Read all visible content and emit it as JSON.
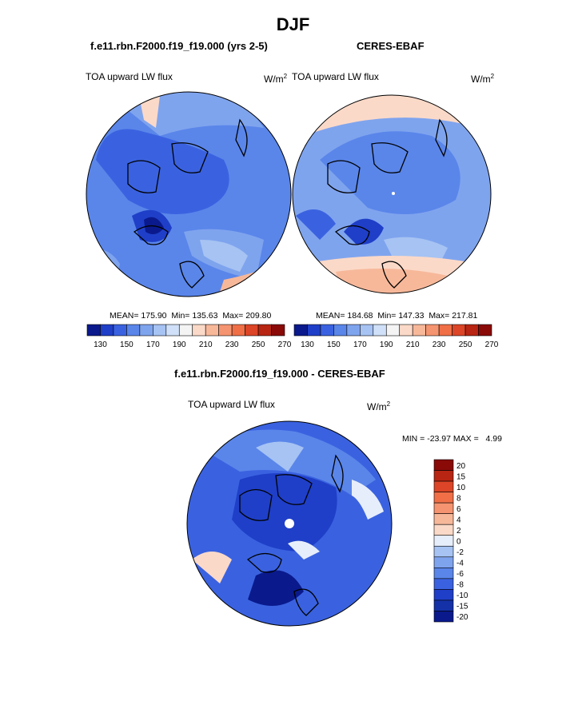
{
  "title": "DJF",
  "panels": [
    {
      "name": "model",
      "header": "f.e11.rbn.F2000.f19_f19.000 (yrs 2-5)",
      "variable": "TOA upward LW flux",
      "units": "W/m",
      "units_sup": "2",
      "mean": "175.90",
      "min": "135.63",
      "max": "209.80"
    },
    {
      "name": "obs",
      "header": "CERES-EBAF",
      "variable": "TOA upward LW flux",
      "units": "W/m",
      "units_sup": "2",
      "mean": "184.68",
      "min": "147.33",
      "max": "217.81"
    }
  ],
  "difference": {
    "header": "f.e11.rbn.F2000.f19_f19.000 - CERES-EBAF",
    "variable": "TOA upward LW flux",
    "units": "W/m",
    "units_sup": "2",
    "min_label": "MIN =",
    "min": "-23.97",
    "max_label": "MAX =",
    "max": "4.99"
  },
  "labels": {
    "mean": "MEAN=",
    "min": "Min=",
    "max": "Max="
  },
  "chart_data": [
    {
      "type": "heatmap",
      "projection": "north polar stereographic",
      "title": "f.e11.rbn.F2000.f19_f19.000 (yrs 2-5)",
      "variable": "TOA upward LW flux",
      "units": "W/m2",
      "colorbar": {
        "levels": [
          130,
          140,
          150,
          160,
          170,
          180,
          190,
          200,
          210,
          220,
          230,
          240,
          250,
          260,
          270
        ],
        "tick_labels": [
          "130",
          "150",
          "170",
          "190",
          "210",
          "230",
          "250",
          "270"
        ]
      },
      "stats": {
        "mean": 175.9,
        "min": 135.63,
        "max": 209.8
      }
    },
    {
      "type": "heatmap",
      "projection": "north polar stereographic",
      "title": "CERES-EBAF",
      "variable": "TOA upward LW flux",
      "units": "W/m2",
      "colorbar": {
        "levels": [
          130,
          140,
          150,
          160,
          170,
          180,
          190,
          200,
          210,
          220,
          230,
          240,
          250,
          260,
          270
        ],
        "tick_labels": [
          "130",
          "150",
          "170",
          "190",
          "210",
          "230",
          "250",
          "270"
        ]
      },
      "stats": {
        "mean": 184.68,
        "min": 147.33,
        "max": 217.81
      }
    },
    {
      "type": "heatmap",
      "projection": "north polar stereographic",
      "title": "f.e11.rbn.F2000.f19_f19.000 - CERES-EBAF",
      "variable": "TOA upward LW flux",
      "units": "W/m2",
      "colorbar": {
        "levels": [
          -20,
          -15,
          -10,
          -8,
          -6,
          -4,
          -2,
          0,
          2,
          4,
          6,
          8,
          10,
          15,
          20
        ],
        "tick_labels": [
          "20",
          "15",
          "10",
          "8",
          "6",
          "4",
          "2",
          "0",
          "-2",
          "-4",
          "-6",
          "-8",
          "-10",
          "-15",
          "-20"
        ]
      },
      "stats": {
        "min": -23.97,
        "max": 4.99
      }
    }
  ],
  "colors": {
    "abs_scale": [
      "#0a1a8c",
      "#1f3fc8",
      "#3a62e0",
      "#5a86ea",
      "#7fa4ee",
      "#a6c3f3",
      "#cfe0f8",
      "#f4f4f4",
      "#fbd9c8",
      "#f7b89a",
      "#f59470",
      "#f06f47",
      "#dc4527",
      "#b82512",
      "#8a0a08"
    ],
    "diff_scale": [
      "#8a0a08",
      "#b82512",
      "#dc4527",
      "#f06f47",
      "#f59470",
      "#f7b89a",
      "#fbd9c8",
      "#e7eefb",
      "#a6c3f3",
      "#7fa4ee",
      "#5a86ea",
      "#3a62e0",
      "#1f3fc8",
      "#1431a8",
      "#0a1a8c"
    ]
  }
}
